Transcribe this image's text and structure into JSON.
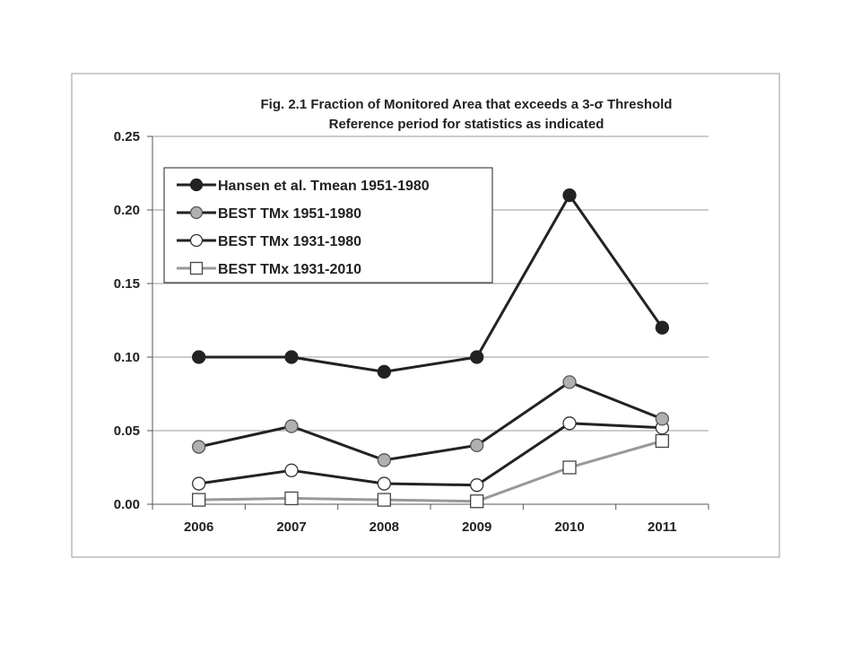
{
  "chart_data": {
    "type": "line",
    "title": "Fig. 2.1 Fraction of Monitored Area that exceeds a 3-σ Threshold",
    "subtitle": "Reference period for statistics as indicated",
    "xlabel": "",
    "ylabel": "",
    "categories": [
      "2006",
      "2007",
      "2008",
      "2009",
      "2010",
      "2011"
    ],
    "ylim": [
      0,
      0.25
    ],
    "yticks": [
      "0.00",
      "0.05",
      "0.10",
      "0.15",
      "0.20",
      "0.25"
    ],
    "ytick_values": [
      0,
      0.05,
      0.1,
      0.15,
      0.2,
      0.25
    ],
    "grid": true,
    "legend_position": "top-left",
    "series": [
      {
        "name": "Hansen et al. Tmean 1951-1980",
        "values": [
          0.1,
          0.1,
          0.09,
          0.1,
          0.21,
          0.12
        ],
        "line_color": "#222222",
        "marker": "circle",
        "marker_fill": "#222222",
        "marker_stroke": "#222222"
      },
      {
        "name": "BEST TMx 1951-1980",
        "values": [
          0.039,
          0.053,
          0.03,
          0.04,
          0.083,
          0.058
        ],
        "line_color": "#222222",
        "marker": "circle",
        "marker_fill": "#b0b0b0",
        "marker_stroke": "#555555"
      },
      {
        "name": "BEST TMx 1931-1980",
        "values": [
          0.014,
          0.023,
          0.014,
          0.013,
          0.055,
          0.052
        ],
        "line_color": "#222222",
        "marker": "circle",
        "marker_fill": "#ffffff",
        "marker_stroke": "#333333"
      },
      {
        "name": "BEST TMx 1931-2010",
        "values": [
          0.003,
          0.004,
          0.003,
          0.002,
          0.025,
          0.043
        ],
        "line_color": "#999999",
        "marker": "square",
        "marker_fill": "#ffffff",
        "marker_stroke": "#444444"
      }
    ]
  }
}
